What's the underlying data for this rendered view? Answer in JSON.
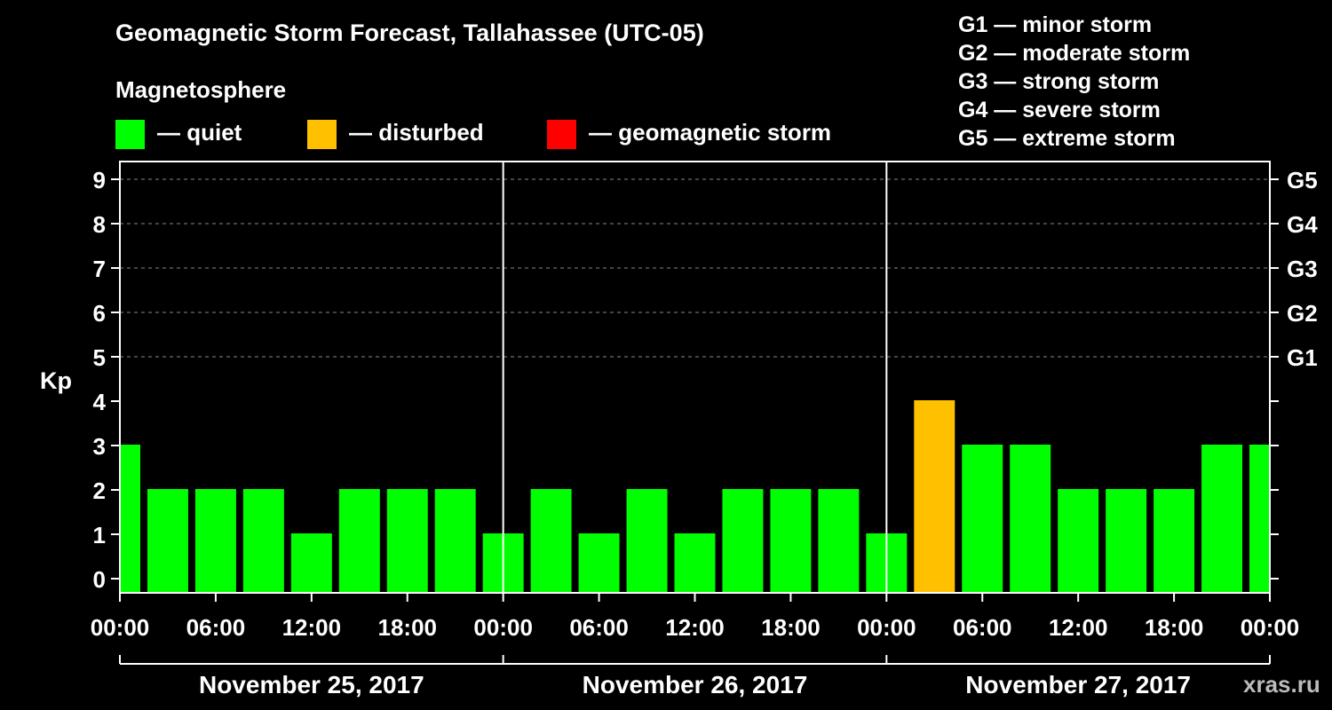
{
  "chart_data": {
    "type": "bar",
    "title": "Geomagnetic Storm Forecast, Tallahassee (UTC-05)",
    "subtitle": "Magnetosphere",
    "ylabel": "Kp",
    "ylim": [
      0,
      9
    ],
    "yticks": [
      "0",
      "1",
      "2",
      "3",
      "4",
      "5",
      "6",
      "7",
      "8",
      "9"
    ],
    "right_axis_labels": [
      {
        "kp": 5,
        "label": "G1"
      },
      {
        "kp": 6,
        "label": "G2"
      },
      {
        "kp": 7,
        "label": "G3"
      },
      {
        "kp": 8,
        "label": "G4"
      },
      {
        "kp": 9,
        "label": "G5"
      }
    ],
    "x_range_hours": [
      0,
      72
    ],
    "first_bar_start_hour": -1.5,
    "bar_interval_hours": 3,
    "xticks": [
      "00:00",
      "06:00",
      "12:00",
      "18:00",
      "00:00",
      "06:00",
      "12:00",
      "18:00",
      "00:00",
      "06:00",
      "12:00",
      "18:00",
      "00:00"
    ],
    "days": [
      "November 25, 2017",
      "November 26, 2017",
      "November 27, 2017"
    ],
    "values": [
      3,
      2,
      2,
      2,
      1,
      2,
      2,
      2,
      1,
      2,
      1,
      2,
      1,
      2,
      2,
      2,
      1,
      4,
      3,
      3,
      2,
      2,
      2,
      3,
      3
    ],
    "status_legend": [
      {
        "key": "quiet",
        "label": "— quiet",
        "color": "#00ff00"
      },
      {
        "key": "disturbed",
        "label": "— disturbed",
        "color": "#ffc000"
      },
      {
        "key": "storm",
        "label": "— geomagnetic storm",
        "color": "#ff0000"
      }
    ],
    "storm_scale": [
      "G1 — minor storm",
      "G2 — moderate storm",
      "G3 — strong storm",
      "G4 — severe storm",
      "G5 — extreme storm"
    ]
  },
  "watermark": "xras.ru"
}
